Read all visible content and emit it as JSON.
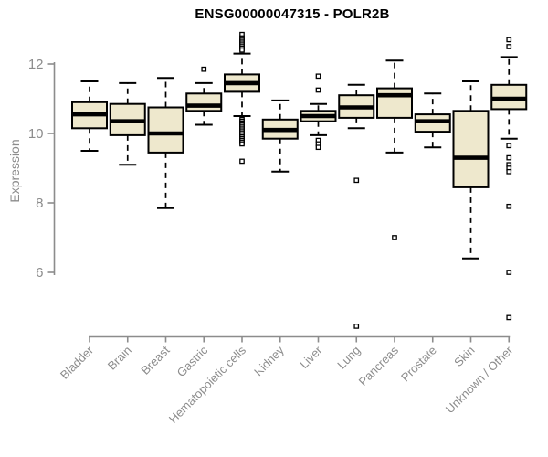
{
  "chart_data": {
    "type": "boxplot",
    "title": "ENSG00000047315 - POLR2B",
    "ylabel": "Expression",
    "xlabel": "",
    "yticks": [
      6,
      8,
      10,
      12
    ],
    "ylim": [
      4.2,
      13.0
    ],
    "grid": false,
    "legend": null,
    "colors": {
      "box_fill": "#EEE8CD",
      "box_stroke": "#000000",
      "median": "#000000",
      "axis": "#8C8C8C",
      "title_color": "#000000"
    },
    "categories": [
      "Bladder",
      "Brain",
      "Breast",
      "Gastric",
      "Hematopoietic cells",
      "Kidney",
      "Liver",
      "Lung",
      "Pancreas",
      "Prostate",
      "Skin",
      "Unknown / Other"
    ],
    "series": [
      {
        "category": "Bladder",
        "low": 9.5,
        "q1": 10.15,
        "median": 10.55,
        "q3": 10.9,
        "high": 11.5,
        "outliers": []
      },
      {
        "category": "Brain",
        "low": 9.1,
        "q1": 9.95,
        "median": 10.35,
        "q3": 10.85,
        "high": 11.45,
        "outliers": []
      },
      {
        "category": "Breast",
        "low": 7.85,
        "q1": 9.45,
        "median": 10.0,
        "q3": 10.75,
        "high": 11.6,
        "outliers": []
      },
      {
        "category": "Gastric",
        "low": 10.25,
        "q1": 10.65,
        "median": 10.8,
        "q3": 11.15,
        "high": 11.45,
        "outliers": [
          11.85
        ]
      },
      {
        "category": "Hematopoietic cells",
        "low": 10.5,
        "q1": 11.2,
        "median": 11.45,
        "q3": 11.7,
        "high": 12.3,
        "outliers": [
          12.85,
          12.75,
          12.7,
          12.65,
          12.6,
          12.55,
          12.5,
          12.45,
          12.4,
          10.4,
          10.35,
          10.3,
          10.25,
          10.2,
          10.15,
          10.1,
          10.05,
          10.0,
          9.95,
          9.9,
          9.85,
          9.8,
          9.75,
          9.7,
          9.2
        ]
      },
      {
        "category": "Kidney",
        "low": 8.9,
        "q1": 9.85,
        "median": 10.1,
        "q3": 10.4,
        "high": 10.95,
        "outliers": []
      },
      {
        "category": "Liver",
        "low": 9.95,
        "q1": 10.35,
        "median": 10.5,
        "q3": 10.65,
        "high": 10.85,
        "outliers": [
          11.65,
          11.25,
          9.8,
          9.7,
          9.6
        ]
      },
      {
        "category": "Lung",
        "low": 10.15,
        "q1": 10.45,
        "median": 10.75,
        "q3": 11.1,
        "high": 11.4,
        "outliers": [
          8.65,
          4.45
        ]
      },
      {
        "category": "Pancreas",
        "low": 9.45,
        "q1": 10.45,
        "median": 11.1,
        "q3": 11.3,
        "high": 12.1,
        "outliers": [
          7.0
        ]
      },
      {
        "category": "Prostate",
        "low": 9.6,
        "q1": 10.05,
        "median": 10.35,
        "q3": 10.55,
        "high": 11.15,
        "outliers": []
      },
      {
        "category": "Skin",
        "low": 6.4,
        "q1": 8.45,
        "median": 9.3,
        "q3": 10.65,
        "high": 11.5,
        "outliers": []
      },
      {
        "category": "Unknown / Other",
        "low": 9.85,
        "q1": 10.7,
        "median": 11.0,
        "q3": 11.4,
        "high": 12.2,
        "outliers": [
          12.7,
          12.5,
          9.65,
          9.3,
          9.1,
          9.0,
          8.9,
          7.9,
          6.0,
          4.7
        ]
      }
    ]
  }
}
